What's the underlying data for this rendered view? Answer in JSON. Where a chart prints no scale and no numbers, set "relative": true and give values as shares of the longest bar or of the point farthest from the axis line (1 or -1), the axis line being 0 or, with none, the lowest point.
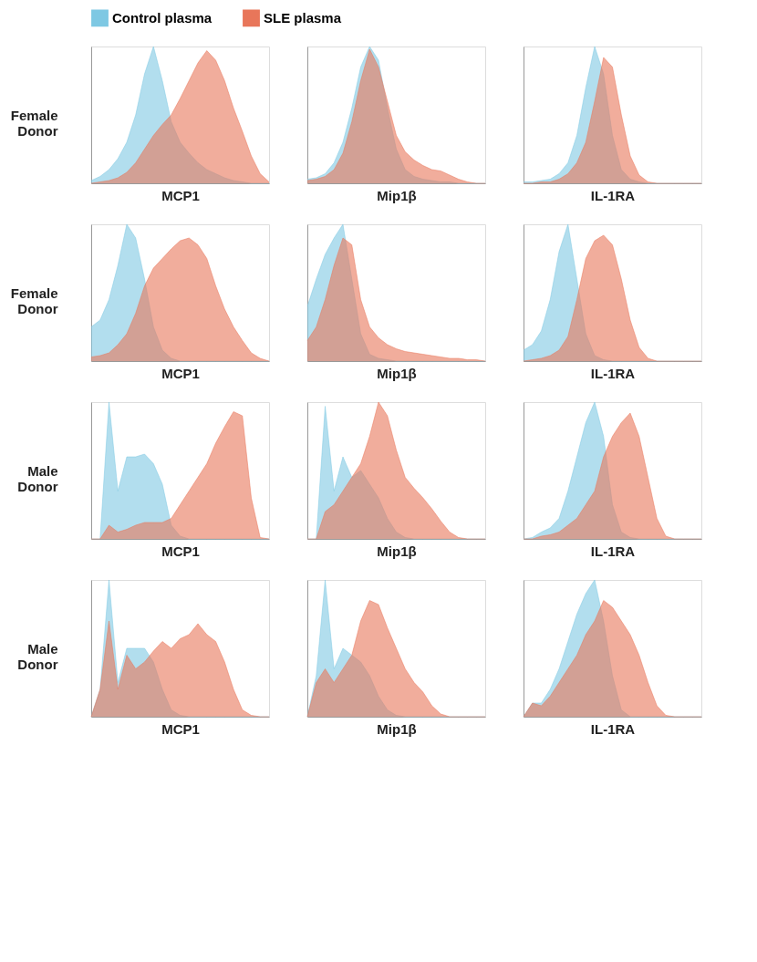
{
  "chart_data": [
    {
      "type": "area",
      "relative": true,
      "tick_labels": false,
      "legend": "top",
      "xlabel": "MCP1",
      "ylabel": "Female Donor",
      "categories": [
        null,
        null,
        null,
        null,
        null,
        null,
        null,
        null,
        null,
        null,
        null,
        null,
        null,
        null,
        null,
        null,
        null,
        null,
        null,
        null,
        null
      ],
      "series": [
        {
          "name": "Control plasma",
          "color": "#7ec8e3",
          "values": [
            0.02,
            0.05,
            0.1,
            0.18,
            0.3,
            0.5,
            0.8,
            1.0,
            0.75,
            0.45,
            0.3,
            0.22,
            0.15,
            0.1,
            0.07,
            0.04,
            0.02,
            0.01,
            0,
            0,
            0
          ]
        },
        {
          "name": "SLE plasma",
          "color": "#e8765a",
          "values": [
            0,
            0.01,
            0.02,
            0.04,
            0.08,
            0.15,
            0.25,
            0.35,
            0.43,
            0.5,
            0.62,
            0.75,
            0.88,
            0.97,
            0.9,
            0.75,
            0.55,
            0.38,
            0.2,
            0.07,
            0.01
          ]
        }
      ]
    },
    {
      "type": "area",
      "relative": true,
      "tick_labels": false,
      "xlabel": "Mip1β",
      "categories": [
        null,
        null,
        null,
        null,
        null,
        null,
        null,
        null,
        null,
        null,
        null,
        null,
        null,
        null,
        null,
        null,
        null,
        null,
        null,
        null,
        null
      ],
      "series": [
        {
          "name": "Control plasma",
          "color": "#7ec8e3",
          "values": [
            0.03,
            0.04,
            0.07,
            0.15,
            0.3,
            0.55,
            0.85,
            1.0,
            0.9,
            0.55,
            0.25,
            0.1,
            0.05,
            0.03,
            0.02,
            0.01,
            0.01,
            0,
            0,
            0,
            0
          ]
        },
        {
          "name": "SLE plasma",
          "color": "#e8765a",
          "values": [
            0.02,
            0.03,
            0.05,
            0.1,
            0.22,
            0.45,
            0.75,
            0.98,
            0.85,
            0.6,
            0.35,
            0.23,
            0.17,
            0.13,
            0.1,
            0.09,
            0.06,
            0.03,
            0.01,
            0,
            0
          ]
        }
      ]
    },
    {
      "type": "area",
      "relative": true,
      "tick_labels": false,
      "xlabel": "IL-1RA",
      "categories": [
        null,
        null,
        null,
        null,
        null,
        null,
        null,
        null,
        null,
        null,
        null,
        null,
        null,
        null,
        null,
        null,
        null,
        null,
        null,
        null,
        null
      ],
      "series": [
        {
          "name": "Control plasma",
          "color": "#7ec8e3",
          "values": [
            0.01,
            0.01,
            0.02,
            0.03,
            0.07,
            0.15,
            0.35,
            0.7,
            1.0,
            0.8,
            0.35,
            0.1,
            0.03,
            0.01,
            0,
            0,
            0,
            0,
            0,
            0,
            0
          ]
        },
        {
          "name": "SLE plasma",
          "color": "#e8765a",
          "values": [
            0,
            0,
            0.01,
            0.01,
            0.03,
            0.07,
            0.15,
            0.3,
            0.6,
            0.92,
            0.85,
            0.5,
            0.2,
            0.06,
            0.01,
            0,
            0,
            0,
            0,
            0,
            0
          ]
        }
      ]
    },
    {
      "type": "area",
      "relative": true,
      "tick_labels": false,
      "xlabel": "MCP1",
      "ylabel": "Female Donor",
      "categories": [
        null,
        null,
        null,
        null,
        null,
        null,
        null,
        null,
        null,
        null,
        null,
        null,
        null,
        null,
        null,
        null,
        null,
        null,
        null,
        null,
        null
      ],
      "series": [
        {
          "name": "Control plasma",
          "color": "#7ec8e3",
          "values": [
            0.25,
            0.3,
            0.45,
            0.7,
            1.0,
            0.9,
            0.6,
            0.25,
            0.08,
            0.02,
            0,
            0,
            0,
            0,
            0,
            0,
            0,
            0,
            0,
            0,
            0
          ]
        },
        {
          "name": "SLE plasma",
          "color": "#e8765a",
          "values": [
            0.03,
            0.04,
            0.06,
            0.12,
            0.2,
            0.35,
            0.55,
            0.68,
            0.75,
            0.82,
            0.88,
            0.9,
            0.85,
            0.75,
            0.55,
            0.38,
            0.25,
            0.15,
            0.06,
            0.02,
            0
          ]
        }
      ]
    },
    {
      "type": "area",
      "relative": true,
      "tick_labels": false,
      "xlabel": "Mip1β",
      "categories": [
        null,
        null,
        null,
        null,
        null,
        null,
        null,
        null,
        null,
        null,
        null,
        null,
        null,
        null,
        null,
        null,
        null,
        null,
        null,
        null,
        null
      ],
      "series": [
        {
          "name": "Control plasma",
          "color": "#7ec8e3",
          "values": [
            0.4,
            0.6,
            0.78,
            0.9,
            1.0,
            0.6,
            0.2,
            0.05,
            0.02,
            0.01,
            0,
            0,
            0,
            0,
            0,
            0,
            0,
            0,
            0,
            0,
            0
          ]
        },
        {
          "name": "SLE plasma",
          "color": "#e8765a",
          "values": [
            0.15,
            0.25,
            0.45,
            0.7,
            0.9,
            0.85,
            0.45,
            0.25,
            0.17,
            0.12,
            0.09,
            0.07,
            0.06,
            0.05,
            0.04,
            0.03,
            0.02,
            0.02,
            0.01,
            0.01,
            0
          ]
        }
      ]
    },
    {
      "type": "area",
      "relative": true,
      "tick_labels": false,
      "xlabel": "IL-1RA",
      "categories": [
        null,
        null,
        null,
        null,
        null,
        null,
        null,
        null,
        null,
        null,
        null,
        null,
        null,
        null,
        null,
        null,
        null,
        null,
        null,
        null,
        null
      ],
      "series": [
        {
          "name": "Control plasma",
          "color": "#7ec8e3",
          "values": [
            0.08,
            0.12,
            0.22,
            0.45,
            0.8,
            1.0,
            0.6,
            0.2,
            0.04,
            0.01,
            0,
            0,
            0,
            0,
            0,
            0,
            0,
            0,
            0,
            0,
            0
          ]
        },
        {
          "name": "SLE plasma",
          "color": "#e8765a",
          "values": [
            0,
            0.01,
            0.02,
            0.04,
            0.08,
            0.18,
            0.45,
            0.75,
            0.88,
            0.92,
            0.85,
            0.6,
            0.3,
            0.1,
            0.02,
            0,
            0,
            0,
            0,
            0,
            0
          ]
        }
      ]
    },
    {
      "type": "area",
      "relative": true,
      "tick_labels": false,
      "xlabel": "MCP1",
      "ylabel": "Male Donor",
      "categories": [
        null,
        null,
        null,
        null,
        null,
        null,
        null,
        null,
        null,
        null,
        null,
        null,
        null,
        null,
        null,
        null,
        null,
        null,
        null,
        null,
        null
      ],
      "series": [
        {
          "name": "Control plasma",
          "color": "#7ec8e3",
          "values": [
            0,
            0,
            1.0,
            0.35,
            0.6,
            0.6,
            0.62,
            0.55,
            0.4,
            0.1,
            0.02,
            0,
            0,
            0,
            0,
            0,
            0,
            0,
            0,
            0,
            0
          ]
        },
        {
          "name": "SLE plasma",
          "color": "#e8765a",
          "values": [
            0,
            0,
            0.1,
            0.05,
            0.07,
            0.1,
            0.12,
            0.12,
            0.12,
            0.15,
            0.25,
            0.35,
            0.45,
            0.55,
            0.7,
            0.82,
            0.93,
            0.9,
            0.3,
            0.01,
            0
          ]
        }
      ]
    },
    {
      "type": "area",
      "relative": true,
      "tick_labels": false,
      "xlabel": "Mip1β",
      "categories": [
        null,
        null,
        null,
        null,
        null,
        null,
        null,
        null,
        null,
        null,
        null,
        null,
        null,
        null,
        null,
        null,
        null,
        null,
        null,
        null,
        null
      ],
      "series": [
        {
          "name": "Control plasma",
          "color": "#7ec8e3",
          "values": [
            0,
            0,
            0.97,
            0.35,
            0.6,
            0.45,
            0.5,
            0.4,
            0.3,
            0.15,
            0.05,
            0.01,
            0,
            0,
            0,
            0,
            0,
            0,
            0,
            0,
            0
          ]
        },
        {
          "name": "SLE plasma",
          "color": "#e8765a",
          "values": [
            0,
            0,
            0.2,
            0.25,
            0.35,
            0.45,
            0.55,
            0.75,
            1.0,
            0.9,
            0.65,
            0.45,
            0.37,
            0.3,
            0.22,
            0.13,
            0.05,
            0.01,
            0,
            0,
            0
          ]
        }
      ]
    },
    {
      "type": "area",
      "relative": true,
      "tick_labels": false,
      "xlabel": "IL-1RA",
      "categories": [
        null,
        null,
        null,
        null,
        null,
        null,
        null,
        null,
        null,
        null,
        null,
        null,
        null,
        null,
        null,
        null,
        null,
        null,
        null,
        null,
        null
      ],
      "series": [
        {
          "name": "Control plasma",
          "color": "#7ec8e3",
          "values": [
            0,
            0.01,
            0.05,
            0.08,
            0.15,
            0.35,
            0.6,
            0.85,
            1.0,
            0.75,
            0.25,
            0.05,
            0.01,
            0,
            0,
            0,
            0,
            0,
            0,
            0,
            0
          ]
        },
        {
          "name": "SLE plasma",
          "color": "#e8765a",
          "values": [
            0,
            0,
            0.02,
            0.03,
            0.05,
            0.1,
            0.15,
            0.25,
            0.35,
            0.6,
            0.75,
            0.85,
            0.92,
            0.75,
            0.45,
            0.15,
            0.02,
            0,
            0,
            0,
            0
          ]
        }
      ]
    },
    {
      "type": "area",
      "relative": true,
      "tick_labels": false,
      "xlabel": "MCP1",
      "ylabel": "Male Donor",
      "categories": [
        null,
        null,
        null,
        null,
        null,
        null,
        null,
        null,
        null,
        null,
        null,
        null,
        null,
        null,
        null,
        null,
        null,
        null,
        null,
        null,
        null
      ],
      "series": [
        {
          "name": "Control plasma",
          "color": "#7ec8e3",
          "values": [
            0,
            0.2,
            1.0,
            0.25,
            0.5,
            0.5,
            0.5,
            0.4,
            0.2,
            0.05,
            0.01,
            0,
            0,
            0,
            0,
            0,
            0,
            0,
            0,
            0,
            0
          ]
        },
        {
          "name": "SLE plasma",
          "color": "#e8765a",
          "values": [
            0,
            0.2,
            0.7,
            0.2,
            0.45,
            0.35,
            0.4,
            0.48,
            0.55,
            0.5,
            0.57,
            0.6,
            0.68,
            0.6,
            0.55,
            0.4,
            0.2,
            0.05,
            0.01,
            0,
            0
          ]
        }
      ]
    },
    {
      "type": "area",
      "relative": true,
      "tick_labels": false,
      "xlabel": "Mip1β",
      "categories": [
        null,
        null,
        null,
        null,
        null,
        null,
        null,
        null,
        null,
        null,
        null,
        null,
        null,
        null,
        null,
        null,
        null,
        null,
        null,
        null,
        null
      ],
      "series": [
        {
          "name": "Control plasma",
          "color": "#7ec8e3",
          "values": [
            0,
            0.3,
            1.0,
            0.35,
            0.5,
            0.45,
            0.4,
            0.3,
            0.15,
            0.05,
            0.01,
            0,
            0,
            0,
            0,
            0,
            0,
            0,
            0,
            0,
            0
          ]
        },
        {
          "name": "SLE plasma",
          "color": "#e8765a",
          "values": [
            0,
            0.25,
            0.35,
            0.25,
            0.35,
            0.45,
            0.7,
            0.85,
            0.82,
            0.65,
            0.5,
            0.35,
            0.25,
            0.18,
            0.08,
            0.02,
            0,
            0,
            0,
            0,
            0
          ]
        }
      ]
    },
    {
      "type": "area",
      "relative": true,
      "tick_labels": false,
      "xlabel": "IL-1RA",
      "categories": [
        null,
        null,
        null,
        null,
        null,
        null,
        null,
        null,
        null,
        null,
        null,
        null,
        null,
        null,
        null,
        null,
        null,
        null,
        null,
        null,
        null
      ],
      "series": [
        {
          "name": "Control plasma",
          "color": "#7ec8e3",
          "values": [
            0,
            0.1,
            0.1,
            0.2,
            0.35,
            0.55,
            0.75,
            0.9,
            1.0,
            0.7,
            0.3,
            0.05,
            0,
            0,
            0,
            0,
            0,
            0,
            0,
            0,
            0
          ]
        },
        {
          "name": "SLE plasma",
          "color": "#e8765a",
          "values": [
            0,
            0.1,
            0.08,
            0.15,
            0.25,
            0.35,
            0.45,
            0.6,
            0.7,
            0.85,
            0.8,
            0.7,
            0.6,
            0.45,
            0.25,
            0.08,
            0.01,
            0,
            0,
            0,
            0
          ]
        }
      ]
    }
  ]
}
